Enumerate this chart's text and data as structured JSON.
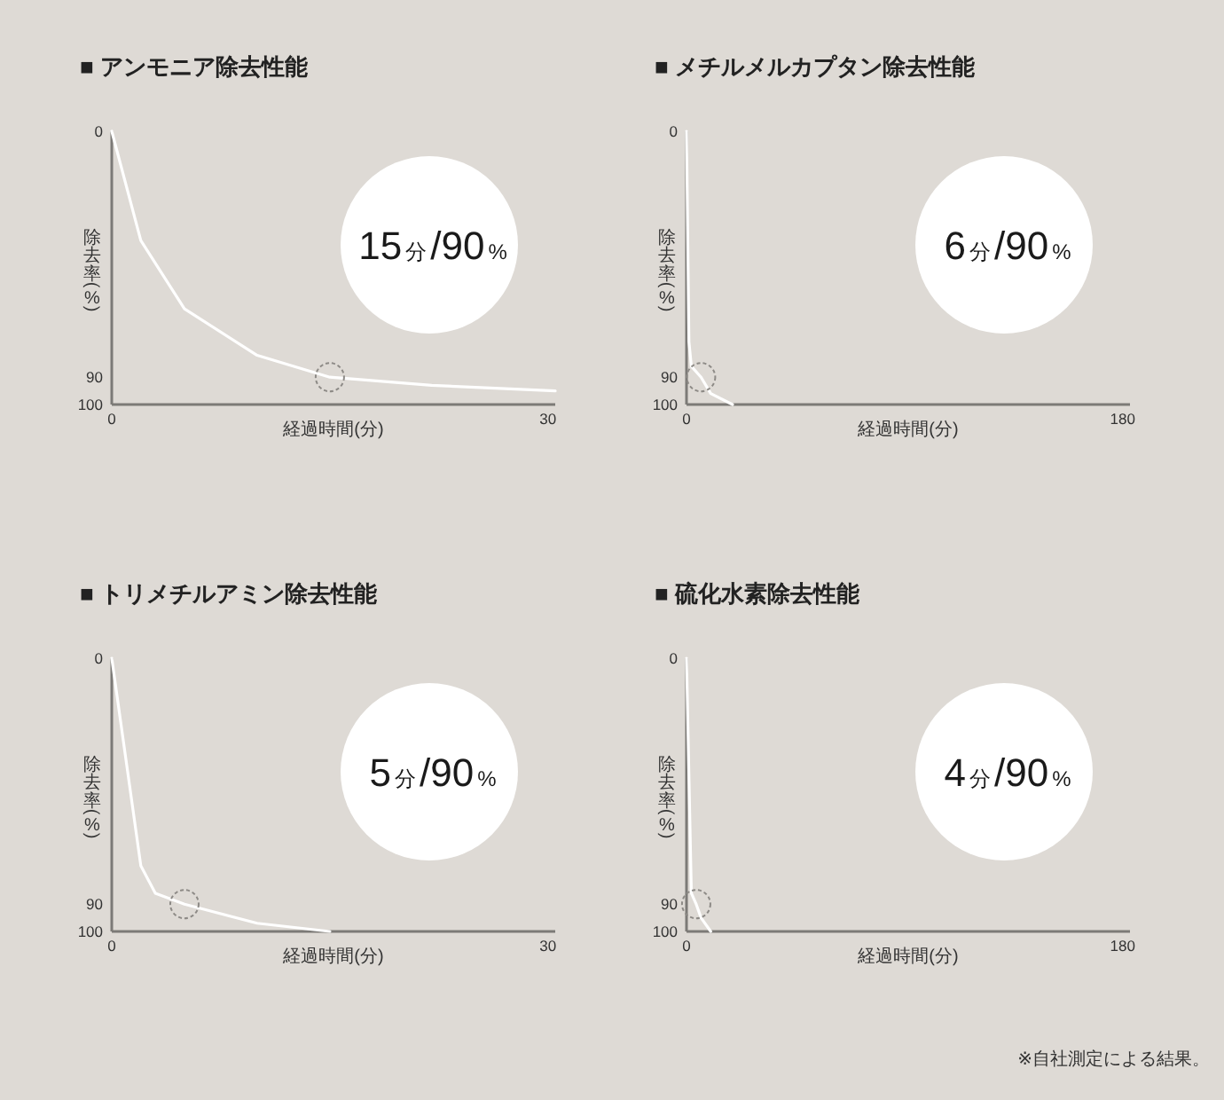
{
  "chart_data": [
    {
      "type": "line",
      "title": "■ アンモニア除去性能",
      "xlabel": "経過時間(分)",
      "ylabel": "除去率(%)",
      "series": [
        {
          "color": "#ffffff",
          "x": [
            0,
            2,
            5,
            10,
            15,
            22,
            30.5
          ],
          "values": [
            0,
            40,
            65,
            82,
            90,
            93,
            95
          ]
        },
        {
          "type": "scatter",
          "marker": "circle",
          "color": "#8d8a86",
          "x": [
            15
          ],
          "values": [
            90
          ]
        }
      ],
      "xlim": [
        0,
        30.5
      ],
      "xticks": [
        0,
        30
      ],
      "ylim": [
        100,
        0
      ],
      "yticks": [
        0,
        90,
        100
      ],
      "annotations": [
        "15分/90%"
      ]
    },
    {
      "type": "line",
      "title": "■ メチルメルカプタン除去性能",
      "xlabel": "経過時間(分)",
      "ylabel": "除去率(%)",
      "series": [
        {
          "color": "#ffffff",
          "x": [
            0,
            1,
            2,
            6,
            10,
            19
          ],
          "values": [
            0,
            77,
            86,
            90,
            96,
            100
          ]
        },
        {
          "type": "scatter",
          "marker": "circle",
          "color": "#8d8a86",
          "x": [
            6
          ],
          "values": [
            90
          ]
        }
      ],
      "xlim": [
        0,
        183
      ],
      "xticks": [
        0,
        180
      ],
      "ylim": [
        100,
        0
      ],
      "yticks": [
        0,
        90,
        100
      ],
      "annotations": [
        "6分/90%"
      ]
    },
    {
      "type": "line",
      "title": "■ トリメチルアミン除去性能",
      "xlabel": "経過時間(分)",
      "ylabel": "除去率(%)",
      "series": [
        {
          "color": "#ffffff",
          "x": [
            0,
            2,
            3,
            5,
            10,
            15
          ],
          "values": [
            0,
            76,
            86,
            90,
            97,
            100
          ]
        },
        {
          "type": "scatter",
          "marker": "circle",
          "color": "#8d8a86",
          "x": [
            5
          ],
          "values": [
            90
          ]
        }
      ],
      "xlim": [
        0,
        30.5
      ],
      "xticks": [
        0,
        30
      ],
      "ylim": [
        100,
        0
      ],
      "yticks": [
        0,
        90,
        100
      ],
      "annotations": [
        "5分/90%"
      ]
    },
    {
      "type": "line",
      "title": "■ 硫化水素除去性能",
      "xlabel": "経過時間(分)",
      "ylabel": "除去率(%)",
      "series": [
        {
          "color": "#ffffff",
          "x": [
            0,
            2,
            4,
            6,
            10
          ],
          "values": [
            0,
            86,
            90,
            95,
            100
          ]
        },
        {
          "type": "scatter",
          "marker": "circle",
          "color": "#8d8a86",
          "x": [
            4
          ],
          "values": [
            90
          ]
        }
      ],
      "xlim": [
        0,
        183
      ],
      "xticks": [
        0,
        180
      ],
      "ylim": [
        100,
        0
      ],
      "yticks": [
        0,
        90,
        100
      ],
      "annotations": [
        "4分/90%",
        "※自社測定による結果。"
      ]
    }
  ]
}
